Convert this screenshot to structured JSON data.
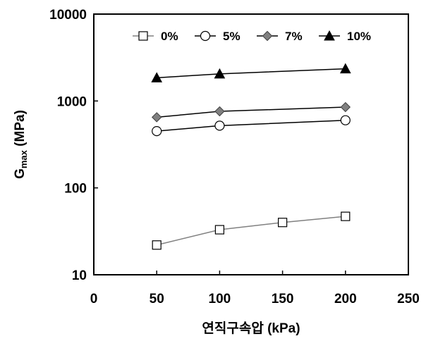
{
  "chart_data": {
    "type": "line",
    "x": [
      50,
      100,
      150,
      200
    ],
    "xlabel": "연직구속압 (kPa)",
    "ylabel_main": "G",
    "ylabel_sub": "max",
    "ylabel_unit": " (MPa)",
    "xlim": [
      0,
      250
    ],
    "ylim": [
      10,
      10000
    ],
    "yscale": "log",
    "x_ticks": [
      0,
      50,
      100,
      150,
      200,
      250
    ],
    "x_tick_labels": [
      "0",
      "50",
      "100",
      "150",
      "200",
      "250"
    ],
    "y_ticks": [
      10,
      100,
      1000,
      10000
    ],
    "y_tick_labels": [
      "10",
      "100",
      "1000",
      "10000"
    ],
    "grid": false,
    "legend_position": "top",
    "series": [
      {
        "name": "0%",
        "x": [
          50,
          100,
          150,
          200
        ],
        "values": [
          22,
          33,
          40,
          47
        ],
        "marker": "square-open",
        "line_color": "#808080",
        "marker_fill": "#ffffff",
        "marker_stroke": "#000000"
      },
      {
        "name": "5%",
        "x": [
          50,
          100,
          200
        ],
        "values": [
          450,
          520,
          600
        ],
        "marker": "circle-open",
        "line_color": "#000000",
        "marker_fill": "#ffffff",
        "marker_stroke": "#000000"
      },
      {
        "name": "7%",
        "x": [
          50,
          100,
          200
        ],
        "values": [
          650,
          760,
          850
        ],
        "marker": "diamond-gray",
        "line_color": "#000000",
        "marker_fill": "#808080",
        "marker_stroke": "#404040"
      },
      {
        "name": "10%",
        "x": [
          50,
          100,
          200
        ],
        "values": [
          1850,
          2050,
          2350
        ],
        "marker": "triangle-filled",
        "line_color": "#000000",
        "marker_fill": "#000000",
        "marker_stroke": "#000000"
      }
    ]
  }
}
